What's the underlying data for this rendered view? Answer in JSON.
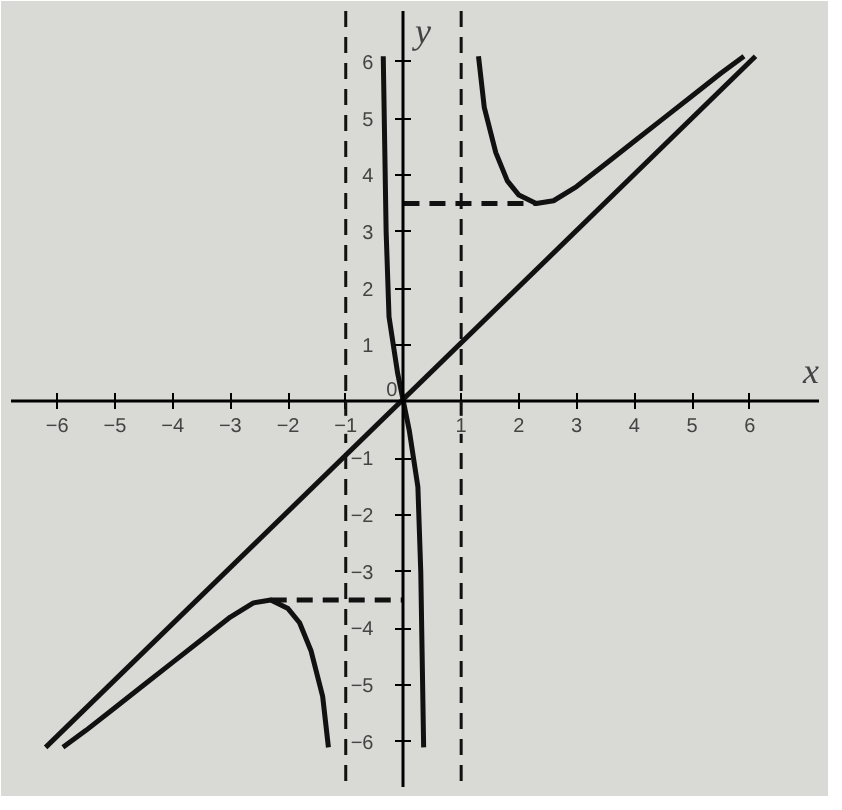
{
  "chart_data": {
    "type": "line",
    "xlabel": "x",
    "ylabel": "y",
    "xlim": [
      -6.8,
      7.2
    ],
    "ylim": [
      -6.8,
      6.9
    ],
    "xticks": [
      -6,
      -5,
      -4,
      -3,
      -2,
      -1,
      1,
      2,
      3,
      4,
      5,
      6
    ],
    "annotations": [
      {
        "text": "0",
        "x": 0,
        "y": 0
      }
    ],
    "yticks": [
      -6,
      -5,
      -4,
      -3,
      -2,
      -1,
      1,
      2,
      3,
      4,
      5,
      6
    ],
    "grid": false,
    "marker": "none",
    "series": [
      {
        "color": "#111111",
        "line_style": "solid",
        "x": [
          -6.2,
          6.1
        ],
        "values": [
          -6.1,
          6.1
        ]
      },
      {
        "color": "#111111",
        "line_style": "solid",
        "x": [
          1.3,
          1.4,
          1.6,
          1.8,
          2.0,
          2.3,
          2.6,
          3.0,
          3.5,
          4.0,
          4.5,
          5.0,
          5.5,
          5.9
        ],
        "values": [
          6.1,
          5.2,
          4.4,
          3.9,
          3.65,
          3.5,
          3.55,
          3.8,
          4.2,
          4.6,
          5.0,
          5.4,
          5.8,
          6.1
        ]
      },
      {
        "color": "#111111",
        "line_style": "solid",
        "x": [
          -5.9,
          -5.5,
          -5.0,
          -4.5,
          -4.0,
          -3.5,
          -3.0,
          -2.6,
          -2.3,
          -2.0,
          -1.8,
          -1.6,
          -1.4,
          -1.3
        ],
        "values": [
          -6.1,
          -5.8,
          -5.4,
          -5.0,
          -4.6,
          -4.2,
          -3.8,
          -3.55,
          -3.5,
          -3.65,
          -3.9,
          -4.4,
          -5.2,
          -6.1
        ]
      },
      {
        "color": "#111111",
        "line_style": "solid",
        "x": [
          -0.35,
          -0.3,
          -0.25,
          -0.1,
          0,
          0.1,
          0.25,
          0.3,
          0.35
        ],
        "values": [
          6.1,
          3.0,
          1.5,
          0.5,
          0,
          -0.5,
          -1.5,
          -3.0,
          -6.1
        ]
      },
      {
        "color": "#111111",
        "line_style": "dashed",
        "x": [
          0,
          2.3
        ],
        "values": [
          3.5,
          3.5
        ]
      },
      {
        "color": "#111111",
        "line_style": "dashed",
        "x": [
          -2.3,
          0
        ],
        "values": [
          -3.5,
          -3.5
        ]
      }
    ],
    "ref_lines": [
      {
        "axis": "x",
        "value": -1,
        "line_style": "dashed",
        "color": "#111111"
      },
      {
        "axis": "x",
        "value": 1,
        "line_style": "dashed",
        "color": "#111111"
      }
    ]
  }
}
